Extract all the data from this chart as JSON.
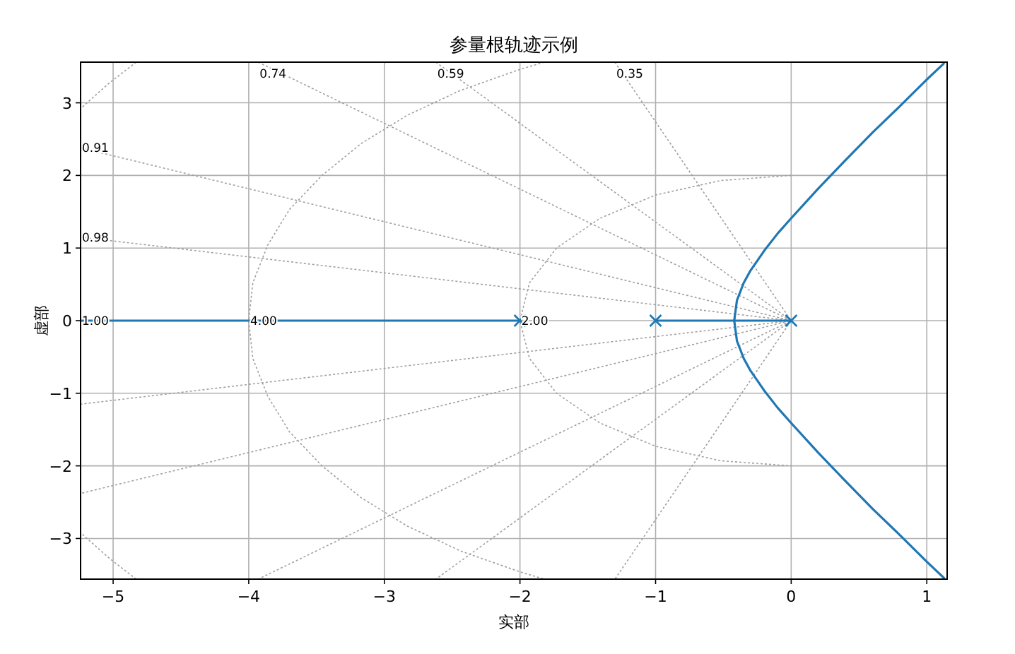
{
  "chart_data": {
    "type": "line",
    "title": "参量根轨迹示例",
    "xlabel": "实部",
    "ylabel": "虚部",
    "xlim": [
      -5.24,
      1.15
    ],
    "ylim": [
      -3.56,
      3.56
    ],
    "xticks": [
      -5,
      -4,
      -3,
      -2,
      -1,
      0,
      1
    ],
    "yticks": [
      -3,
      -2,
      -1,
      0,
      1,
      2,
      3
    ],
    "grid": true,
    "series": [
      {
        "type": "line",
        "color": "#a0a0a0",
        "line_style": "dotted",
        "marker": "none",
        "x": [
          -1.3,
          0,
          -1.3
        ],
        "values": [
          3.56,
          0,
          -3.56
        ]
      },
      {
        "type": "line",
        "color": "#a0a0a0",
        "line_style": "dotted",
        "marker": "none",
        "x": [
          -2.62,
          0,
          -2.62
        ],
        "values": [
          3.56,
          0,
          -3.56
        ]
      },
      {
        "type": "line",
        "color": "#a0a0a0",
        "line_style": "dotted",
        "marker": "none",
        "x": [
          -3.93,
          0,
          -3.93
        ],
        "values": [
          3.56,
          0,
          -3.56
        ]
      },
      {
        "type": "line",
        "color": "#a0a0a0",
        "line_style": "dotted",
        "marker": "none",
        "x": [
          -5.24,
          0,
          -5.24
        ],
        "values": [
          2.38,
          0,
          -2.38
        ]
      },
      {
        "type": "line",
        "color": "#a0a0a0",
        "line_style": "dotted",
        "marker": "none",
        "x": [
          -5.24,
          0,
          -5.24
        ],
        "values": [
          1.15,
          0,
          -1.15
        ]
      },
      {
        "type": "line",
        "color": "#a0a0a0",
        "line_style": "dotted",
        "marker": "none",
        "x": [
          0,
          -0.52,
          -1,
          -1.41,
          -1.73,
          -1.93,
          -2,
          -1.93,
          -1.73,
          -1.41,
          -1,
          -0.52,
          0
        ],
        "values": [
          2,
          1.93,
          1.73,
          1.41,
          1,
          0.52,
          0,
          -0.52,
          -1,
          -1.41,
          -1.73,
          -1.93,
          -2
        ]
      },
      {
        "type": "line",
        "color": "#a0a0a0",
        "line_style": "dotted",
        "marker": "none",
        "x": [
          -1.82,
          -2,
          -2.44,
          -2.83,
          -3.17,
          -3.46,
          -3.7,
          -3.86,
          -3.97,
          -4,
          -3.97,
          -3.86,
          -3.7,
          -3.46,
          -3.17,
          -2.83,
          -2.44,
          -2,
          -1.82
        ],
        "values": [
          3.56,
          3.46,
          3.17,
          2.83,
          2.44,
          2,
          1.53,
          1.04,
          0.52,
          0,
          -0.52,
          -1.04,
          -1.53,
          -2,
          -2.44,
          -2.83,
          -3.17,
          -3.46,
          -3.56
        ]
      },
      {
        "type": "line",
        "color": "#a0a0a0",
        "line_style": "dotted",
        "marker": "none",
        "x": [
          -4.83,
          -5.03,
          -5.24
        ],
        "values": [
          3.56,
          3.27,
          2.92
        ]
      },
      {
        "type": "line",
        "color": "#a0a0a0",
        "line_style": "dotted",
        "marker": "none",
        "x": [
          -4.83,
          -5.03,
          -5.24
        ],
        "values": [
          -3.56,
          -3.27,
          -2.92
        ]
      },
      {
        "type": "line",
        "color": "#1f77b4",
        "line_style": "solid",
        "marker": "none",
        "x": [
          -2,
          -5.24
        ],
        "values": [
          0,
          0
        ]
      },
      {
        "type": "line",
        "color": "#1f77b4",
        "line_style": "solid",
        "marker": "none",
        "x": [
          0,
          -0.42,
          -0.4,
          -0.35,
          -0.3,
          -0.2,
          -0.1,
          0,
          0.2,
          0.4,
          0.6,
          0.8,
          1.0,
          1.13
        ],
        "values": [
          0,
          0,
          0.28,
          0.52,
          0.69,
          0.96,
          1.2,
          1.41,
          1.82,
          2.21,
          2.59,
          2.95,
          3.32,
          3.55
        ]
      },
      {
        "type": "line",
        "color": "#1f77b4",
        "line_style": "solid",
        "marker": "none",
        "x": [
          -1,
          -0.42,
          -0.4,
          -0.35,
          -0.3,
          -0.2,
          -0.1,
          0,
          0.2,
          0.4,
          0.6,
          0.8,
          1.0,
          1.13
        ],
        "values": [
          0,
          0,
          -0.28,
          -0.52,
          -0.69,
          -0.96,
          -1.2,
          -1.41,
          -1.82,
          -2.21,
          -2.59,
          -2.95,
          -3.32,
          -3.55
        ]
      },
      {
        "type": "scatter",
        "color": "#1f77b4",
        "marker": "cross",
        "x": [
          -2,
          -1,
          0
        ],
        "values": [
          0,
          0,
          0
        ]
      }
    ],
    "annotations": [
      {
        "text": "0.74",
        "x": -3.93,
        "y": 3.56
      },
      {
        "text": "0.59",
        "x": -2.62,
        "y": 3.56
      },
      {
        "text": "0.35",
        "x": -1.3,
        "y": 3.56
      },
      {
        "text": "0.91",
        "x": -5.24,
        "y": 2.38
      },
      {
        "text": "0.98",
        "x": -5.24,
        "y": 1.15
      },
      {
        "text": "1.00",
        "x": -5.24,
        "y": 0
      },
      {
        "text": "4.00",
        "x": -4,
        "y": 0
      },
      {
        "text": "2.00",
        "x": -2,
        "y": 0
      }
    ]
  }
}
